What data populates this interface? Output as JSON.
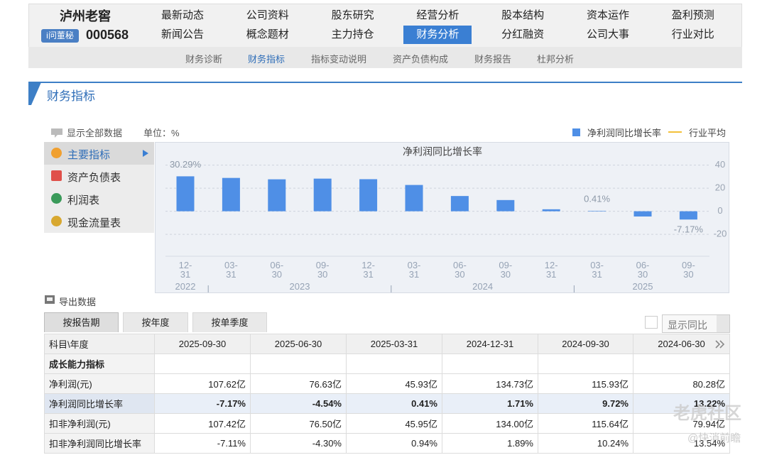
{
  "header": {
    "company": "泸州老窖",
    "badge": "i问董秘",
    "code": "000568",
    "nav": [
      [
        {
          "label": "最新动态"
        },
        {
          "label": "公司资料"
        },
        {
          "label": "股东研究"
        },
        {
          "label": "经营分析"
        },
        {
          "label": "股本结构"
        },
        {
          "label": "资本运作"
        },
        {
          "label": "盈利预测"
        }
      ],
      [
        {
          "label": "新闻公告"
        },
        {
          "label": "概念题材"
        },
        {
          "label": "主力持仓"
        },
        {
          "label": "财务分析",
          "active": true
        },
        {
          "label": "分红融资"
        },
        {
          "label": "公司大事"
        },
        {
          "label": "行业对比"
        }
      ]
    ]
  },
  "subnav": [
    {
      "label": "财务诊断"
    },
    {
      "label": "财务指标",
      "active": true
    },
    {
      "label": "指标变动说明"
    },
    {
      "label": "资产负债构成"
    },
    {
      "label": "财务报告"
    },
    {
      "label": "杜邦分析"
    }
  ],
  "section_title": "财务指标",
  "toolbar": {
    "show_all": "显示全部数据",
    "unit": "单位：%"
  },
  "side_menu": [
    {
      "label": "主要指标",
      "active": true
    },
    {
      "label": "资产负债表"
    },
    {
      "label": "利润表"
    },
    {
      "label": "现金流量表"
    }
  ],
  "chart_data": {
    "type": "bar",
    "title": "净利润同比增长率",
    "categories": [
      "12-31",
      "03-31",
      "06-30",
      "09-30",
      "12-31",
      "03-31",
      "06-30",
      "09-30",
      "12-31",
      "03-31",
      "06-30",
      "09-30"
    ],
    "year_labels": [
      "2022",
      "2023",
      "2024",
      "2025"
    ],
    "series": [
      {
        "name": "净利润同比增长率",
        "color": "#4f8fe6",
        "values": [
          30.29,
          28.9,
          27.7,
          28.3,
          27.8,
          22.8,
          13.22,
          9.72,
          1.71,
          0.41,
          -4.54,
          -7.17
        ],
        "value_labels": [
          "30.29%",
          null,
          null,
          null,
          null,
          null,
          null,
          null,
          null,
          "0.41%",
          null,
          "-7.17%"
        ]
      }
    ],
    "reference_legend": {
      "name": "行业平均",
      "color": "#f3c13a"
    },
    "ylim": [
      -39,
      57
    ],
    "yticks": [
      -20,
      0,
      20,
      40
    ],
    "grid": true
  },
  "export": "导出数据",
  "tabs": [
    {
      "label": "按报告期",
      "active": true
    },
    {
      "label": "按年度"
    },
    {
      "label": "按单季度"
    }
  ],
  "compare_toggle": "显示同比",
  "table": {
    "header": [
      "科目\\年度",
      "2025-09-30",
      "2025-06-30",
      "2025-03-31",
      "2024-12-31",
      "2024-09-30",
      "2024-06-30"
    ],
    "rows": [
      {
        "cells": [
          "成长能力指标"
        ],
        "section": true
      },
      {
        "cells": [
          "净利润(元)",
          "107.62亿",
          "76.63亿",
          "45.93亿",
          "134.73亿",
          "115.93亿",
          "80.28亿"
        ]
      },
      {
        "cells": [
          "净利润同比增长率",
          "-7.17%",
          "-4.54%",
          "0.41%",
          "1.71%",
          "9.72%",
          "13.22%"
        ],
        "highlight": true
      },
      {
        "cells": [
          "扣非净利润(元)",
          "107.42亿",
          "76.50亿",
          "45.95亿",
          "134.00亿",
          "115.64亿",
          "79.94亿"
        ]
      },
      {
        "cells": [
          "扣非净利润同比增长率",
          "-7.11%",
          "-4.30%",
          "0.94%",
          "1.89%",
          "10.24%",
          "13.54%"
        ]
      }
    ]
  },
  "watermark": [
    "老虎社区",
    "@快消前瞻"
  ]
}
